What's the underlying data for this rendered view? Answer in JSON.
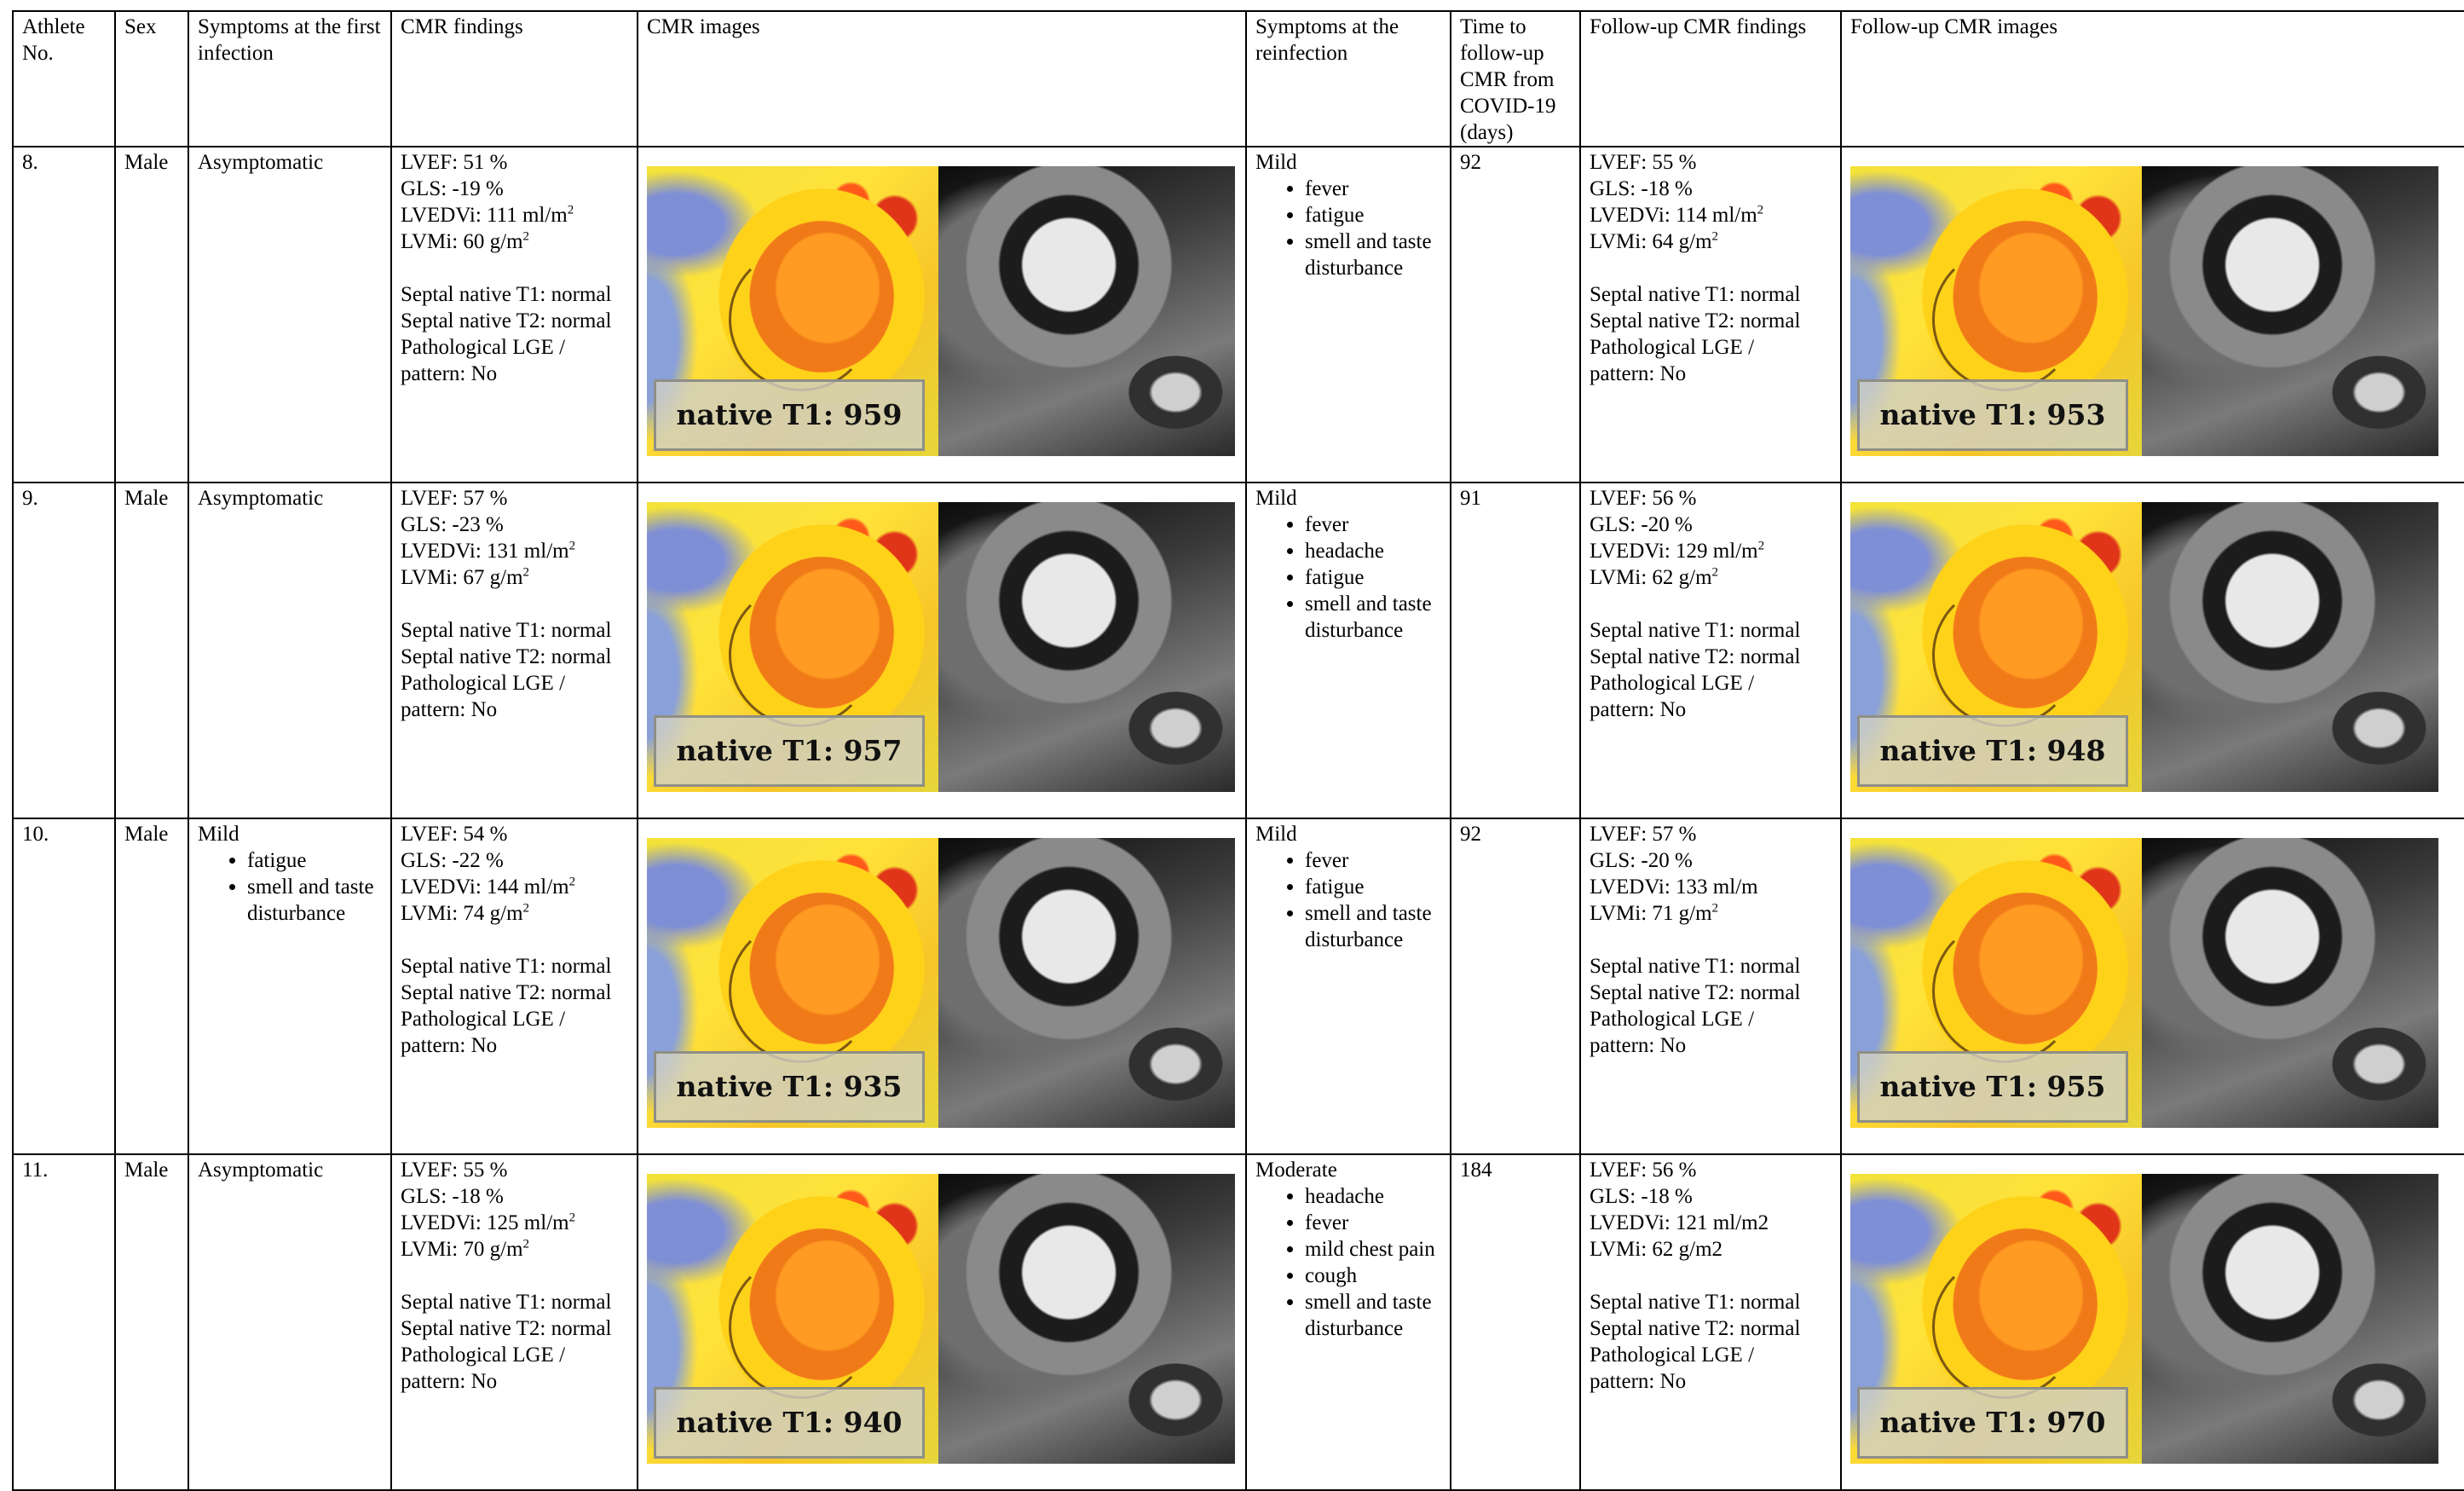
{
  "headers": [
    "Athlete No.",
    "Sex",
    "Symptoms at the first infection",
    "CMR findings",
    "CMR images",
    "Symptoms at the reinfection",
    "Time to follow-up CMR from COVID-19 (days)",
    "Follow-up CMR findings",
    "Follow-up CMR images"
  ],
  "rows": [
    {
      "no": "8.",
      "sex": "Male",
      "first_symptom": "Asymptomatic",
      "first_list": [],
      "cmr": {
        "lvef": "LVEF: 51 %",
        "gls": "GLS: -19 %",
        "lvedvi": "LVEDVi: 111 ml/m",
        "lvedvi_sup": "2",
        "lvmi": "LVMi: 60 g/m",
        "lvmi_sup": "2"
      },
      "cmr_t1": "native T1: 959 ms",
      "reinfection": "Mild",
      "reinfection_list": [
        "fever",
        "fatigue",
        "smell and taste disturbance"
      ],
      "days": "92",
      "fu": {
        "lvef": "LVEF: 55 %",
        "gls": "GLS: -18 %",
        "lvedvi": "LVEDVi: 114 ml/m",
        "lvedvi_sup": "2",
        "lvmi": "LVMi: 64 g/m",
        "lvmi_sup": "2"
      },
      "fu_t1": "native T1: 953 ms"
    },
    {
      "no": "9.",
      "sex": "Male",
      "first_symptom": "Asymptomatic",
      "first_list": [],
      "cmr": {
        "lvef": "LVEF: 57 %",
        "gls": "GLS: -23 %",
        "lvedvi": "LVEDVi: 131 ml/m",
        "lvedvi_sup": "2",
        "lvmi": "LVMi: 67 g/m",
        "lvmi_sup": "2"
      },
      "cmr_t1": "native T1: 957 ms",
      "reinfection": "Mild",
      "reinfection_list": [
        "fever",
        "headache",
        "fatigue",
        "smell and taste disturbance"
      ],
      "days": "91",
      "fu": {
        "lvef": "LVEF: 56 %",
        "gls": "GLS: -20 %",
        "lvedvi": "LVEDVi: 129 ml/m",
        "lvedvi_sup": "2",
        "lvmi": "LVMi: 62 g/m",
        "lvmi_sup": "2"
      },
      "fu_t1": "native T1: 948 ms"
    },
    {
      "no": "10.",
      "sex": "Male",
      "first_symptom": "Mild",
      "first_list": [
        "fatigue",
        "smell and taste disturbance"
      ],
      "cmr": {
        "lvef": "LVEF: 54 %",
        "gls": "GLS: -22 %",
        "lvedvi": "LVEDVi: 144 ml/m",
        "lvedvi_sup": "2",
        "lvmi": "LVMi: 74 g/m",
        "lvmi_sup": "2"
      },
      "cmr_t1": "native T1: 935 ms",
      "reinfection": "Mild",
      "reinfection_list": [
        "fever",
        "fatigue",
        "smell and taste disturbance"
      ],
      "days": "92",
      "fu": {
        "lvef": "LVEF: 57 %",
        "gls": "GLS: -20 %",
        "lvedvi": "LVEDVi: 133 ml/m",
        "lvedvi_sup": "",
        "lvmi": "LVMi: 71 g/m",
        "lvmi_sup": "2"
      },
      "fu_t1": "native T1: 955 ms"
    },
    {
      "no": "11.",
      "sex": "Male",
      "first_symptom": "Asymptomatic",
      "first_list": [],
      "cmr": {
        "lvef": "LVEF: 55 %",
        "gls": "GLS: -18 %",
        "lvedvi": "LVEDVi: 125 ml/m",
        "lvedvi_sup": "2",
        "lvmi": "LVMi: 70 g/m",
        "lvmi_sup": "2"
      },
      "cmr_t1": "native T1: 940 ms",
      "reinfection": "Moderate",
      "reinfection_list": [
        "headache",
        "fever",
        "mild chest pain",
        "cough",
        "smell and taste disturbance"
      ],
      "days": "184",
      "fu": {
        "lvef": "LVEF: 56 %",
        "gls": "GLS: -18 %",
        "lvedvi": "LVEDVi: 121 ml/m2",
        "lvedvi_sup": "",
        "lvmi": "LVMi: 62 g/m2",
        "lvmi_sup": ""
      },
      "fu_t1": "native T1: 970 ms"
    }
  ],
  "septal_lines": [
    "Septal native T1: normal",
    "Septal native T2: normal",
    "Pathological LGE /",
    "pattern: No"
  ]
}
